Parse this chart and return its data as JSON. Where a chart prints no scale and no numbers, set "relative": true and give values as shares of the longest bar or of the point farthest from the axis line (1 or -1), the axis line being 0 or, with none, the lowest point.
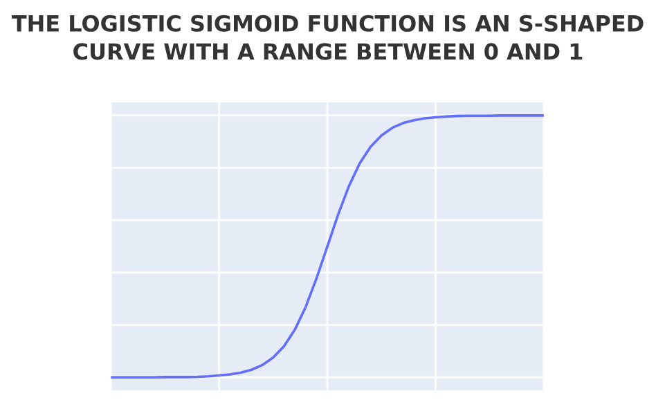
{
  "chart_data": {
    "type": "line",
    "title": "THE LOGISTIC SIGMOID FUNCTION IS AN S-SHAPED\nCURVE WITH A RANGE BETWEEN 0 AND 1",
    "relative": true,
    "grid": true,
    "categories": [
      null,
      null,
      null,
      null,
      null,
      null,
      null,
      null,
      null,
      null,
      null,
      null,
      null,
      null,
      null,
      null,
      null,
      null,
      null,
      null,
      null,
      null,
      null,
      null,
      null,
      null,
      null,
      null,
      null,
      null,
      null,
      null,
      null,
      null,
      null,
      null,
      null,
      null,
      null,
      null,
      null
    ],
    "series": [
      {
        "color": "#636efa",
        "values": [
          0.0,
          0.0,
          0.0,
          0.0,
          0.0,
          0.001,
          0.001,
          0.001,
          0.002,
          0.004,
          0.007,
          0.011,
          0.018,
          0.029,
          0.047,
          0.076,
          0.119,
          0.182,
          0.269,
          0.378,
          0.5,
          0.622,
          0.731,
          0.818,
          0.881,
          0.924,
          0.953,
          0.971,
          0.982,
          0.989,
          0.993,
          0.996,
          0.998,
          0.999,
          0.999,
          0.999,
          1.0,
          1.0,
          1.0,
          1.0,
          1.0
        ]
      }
    ]
  }
}
